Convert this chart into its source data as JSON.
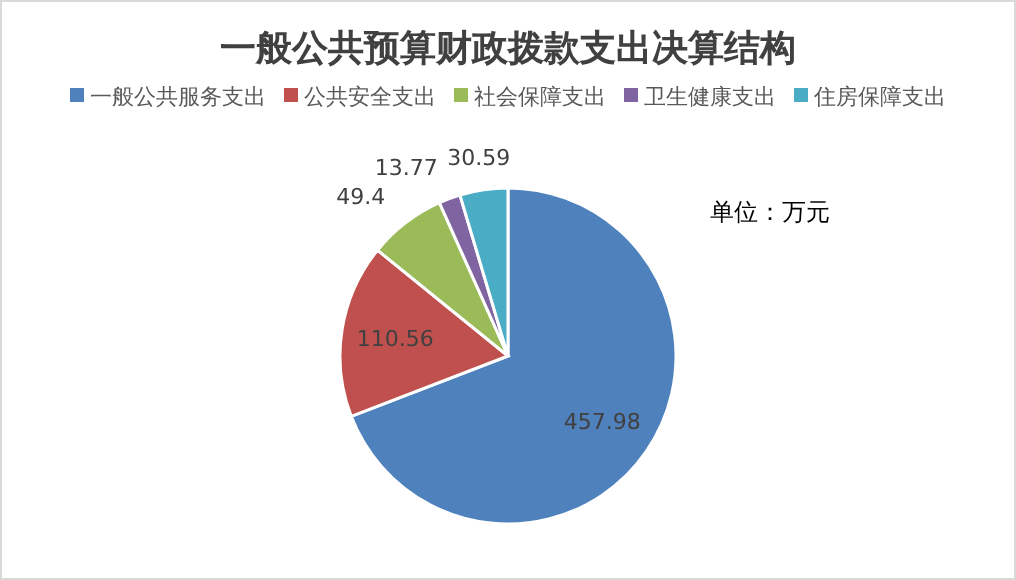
{
  "chart_data": {
    "type": "pie",
    "title": "一般公共预算财政拨款支出决算结构",
    "categories": [
      "一般公共服务支出",
      "公共安全支出",
      "社会保障支出",
      "卫生健康支出",
      "住房保障支出"
    ],
    "values": [
      457.98,
      110.56,
      49.4,
      13.77,
      30.59
    ],
    "colors": [
      "#4f81bd",
      "#c0504d",
      "#9bbb59",
      "#8064a2",
      "#4bacc6"
    ],
    "data_labels": true,
    "legend": "top",
    "annotations": [
      "单位：万元"
    ]
  }
}
